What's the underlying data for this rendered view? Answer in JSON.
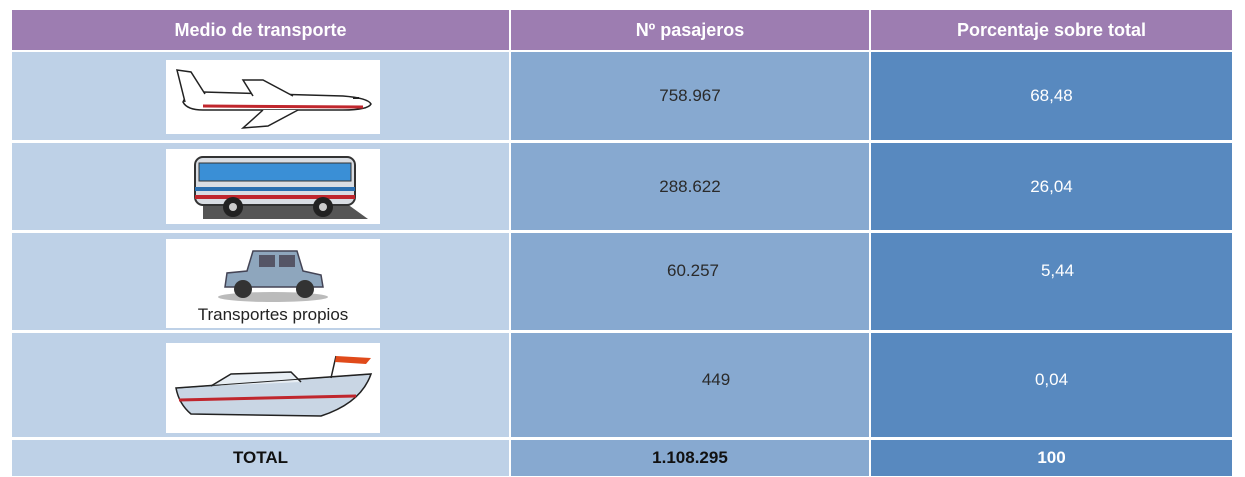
{
  "table": {
    "columns": [
      "Medio de transporte",
      "Nº pasajeros",
      "Porcentaje sobre total"
    ],
    "rows": [
      {
        "passengers": "758.967",
        "percent": "68,48"
      },
      {
        "passengers": "288.622",
        "percent": "26,04"
      },
      {
        "caption": "Transportes propios",
        "passengers": "60.257",
        "percent": "5,44"
      },
      {
        "passengers": "449",
        "percent": "0,04"
      }
    ],
    "total": {
      "label": "TOTAL",
      "passengers": "1.108.295",
      "percent": "100"
    }
  }
}
